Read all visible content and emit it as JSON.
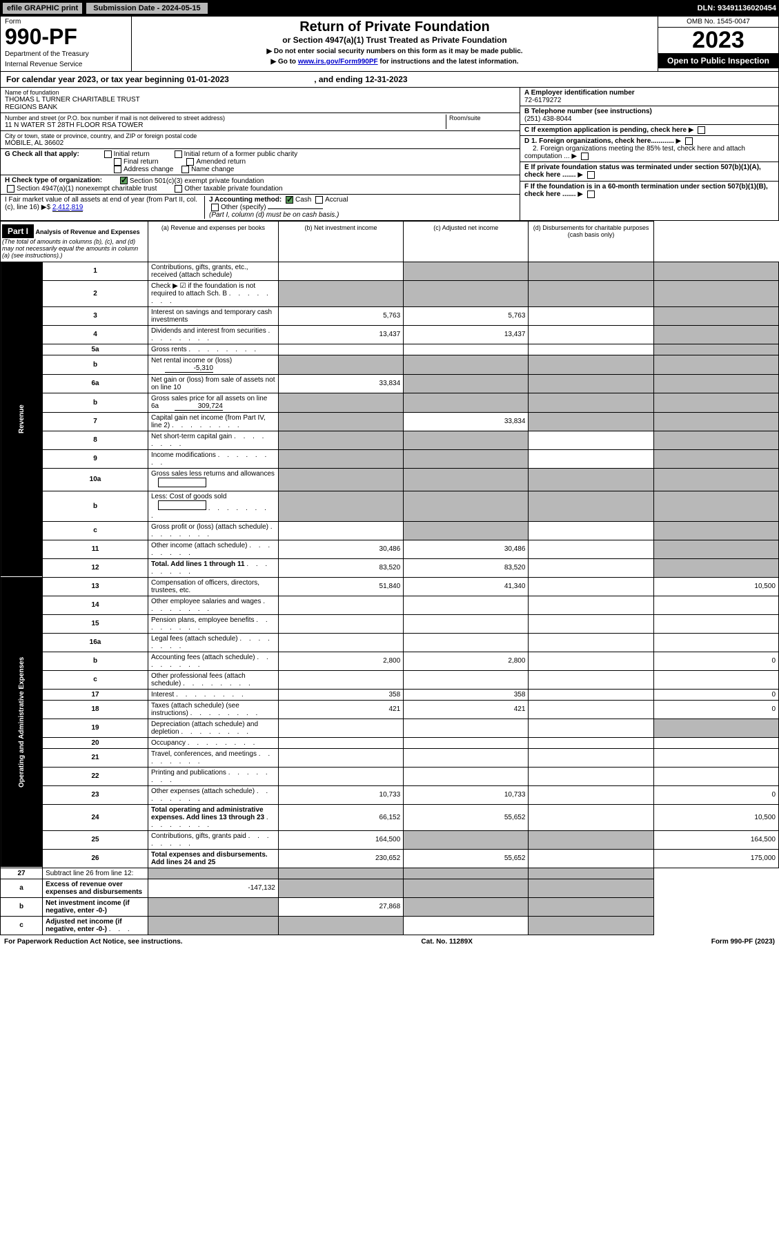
{
  "top": {
    "efile": "efile GRAPHIC print",
    "sub_label": "Submission Date - 2024-05-15",
    "dln": "DLN: 93491136020454"
  },
  "header": {
    "form": "Form",
    "form_num": "990-PF",
    "dept": "Department of the Treasury",
    "irs": "Internal Revenue Service",
    "title": "Return of Private Foundation",
    "subtitle": "or Section 4947(a)(1) Trust Treated as Private Foundation",
    "note1": "▶ Do not enter social security numbers on this form as it may be made public.",
    "note2_pre": "▶ Go to ",
    "note2_link": "www.irs.gov/Form990PF",
    "note2_post": " for instructions and the latest information.",
    "omb": "OMB No. 1545-0047",
    "year": "2023",
    "open": "Open to Public Inspection"
  },
  "cal": {
    "text_pre": "For calendar year 2023, or tax year beginning ",
    "begin": "01-01-2023",
    "mid": " , and ending ",
    "end": "12-31-2023"
  },
  "info": {
    "name_lbl": "Name of foundation",
    "name": "THOMAS L TURNER CHARITABLE TRUST\nREGIONS BANK",
    "addr_lbl": "Number and street (or P.O. box number if mail is not delivered to street address)",
    "addr": "11 N WATER ST 28TH FLOOR RSA TOWER",
    "room_lbl": "Room/suite",
    "city_lbl": "City or town, state or province, country, and ZIP or foreign postal code",
    "city": "MOBILE, AL  36602",
    "ein_lbl": "A Employer identification number",
    "ein": "72-6179272",
    "tel_lbl": "B Telephone number (see instructions)",
    "tel": "(251) 438-8044",
    "c": "C If exemption application is pending, check here",
    "d1": "D 1. Foreign organizations, check here............",
    "d2": "2. Foreign organizations meeting the 85% test, check here and attach computation ...",
    "e": "E If private foundation status was terminated under section 507(b)(1)(A), check here .......",
    "f": "F If the foundation is in a 60-month termination under section 507(b)(1)(B), check here .......",
    "g_lbl": "G Check all that apply:",
    "g_opts": [
      "Initial return",
      "Final return",
      "Address change",
      "Initial return of a former public charity",
      "Amended return",
      "Name change"
    ],
    "h_lbl": "H Check type of organization:",
    "h1": "Section 501(c)(3) exempt private foundation",
    "h2": "Section 4947(a)(1) nonexempt charitable trust",
    "h3": "Other taxable private foundation",
    "i_lbl": "I Fair market value of all assets at end of year (from Part II, col. (c), line 16)",
    "i_val": "2,412,819",
    "j_lbl": "J Accounting method:",
    "j_opts": [
      "Cash",
      "Accrual"
    ],
    "j_other": "Other (specify)",
    "j_note": "(Part I, column (d) must be on cash basis.)"
  },
  "part1": {
    "hdr": "Part I",
    "title": "Analysis of Revenue and Expenses",
    "title_note": " (The total of amounts in columns (b), (c), and (d) may not necessarily equal the amounts in column (a) (see instructions).)",
    "col_a": "(a) Revenue and expenses per books",
    "col_b": "(b) Net investment income",
    "col_c": "(c) Adjusted net income",
    "col_d": "(d) Disbursements for charitable purposes (cash basis only)"
  },
  "sides": {
    "rev": "Revenue",
    "exp": "Operating and Administrative Expenses"
  },
  "lines": [
    {
      "n": "1",
      "d": "Contributions, gifts, grants, etc., received (attach schedule)",
      "a": "",
      "b": null,
      "c": null,
      "dd": null,
      "b_sh": true,
      "c_sh": true,
      "d_sh": true
    },
    {
      "n": "2",
      "d": "Check ▶ ☑ if the foundation is not required to attach Sch. B",
      "dots": true,
      "a": null,
      "b": null,
      "c": null,
      "dd": null,
      "a_sh": true,
      "b_sh": true,
      "c_sh": true,
      "d_sh": true
    },
    {
      "n": "3",
      "d": "Interest on savings and temporary cash investments",
      "a": "5,763",
      "b": "5,763",
      "c": "",
      "dd": null,
      "d_sh": true
    },
    {
      "n": "4",
      "d": "Dividends and interest from securities",
      "dots": true,
      "a": "13,437",
      "b": "13,437",
      "c": "",
      "dd": null,
      "d_sh": true
    },
    {
      "n": "5a",
      "d": "Gross rents",
      "dots": true,
      "a": "",
      "b": "",
      "c": "",
      "dd": null,
      "d_sh": true
    },
    {
      "n": "b",
      "d": "Net rental income or (loss)",
      "inline_val": "-5,310",
      "a": null,
      "b": null,
      "c": null,
      "dd": null,
      "a_sh": true,
      "b_sh": true,
      "c_sh": true,
      "d_sh": true
    },
    {
      "n": "6a",
      "d": "Net gain or (loss) from sale of assets not on line 10",
      "a": "33,834",
      "b": null,
      "c": null,
      "dd": null,
      "b_sh": true,
      "c_sh": true,
      "d_sh": true
    },
    {
      "n": "b",
      "d": "Gross sales price for all assets on line 6a",
      "inline_val": "309,724",
      "a": null,
      "b": null,
      "c": null,
      "dd": null,
      "a_sh": true,
      "b_sh": true,
      "c_sh": true,
      "d_sh": true
    },
    {
      "n": "7",
      "d": "Capital gain net income (from Part IV, line 2)",
      "dots": true,
      "a": null,
      "b": "33,834",
      "c": null,
      "dd": null,
      "a_sh": true,
      "c_sh": true,
      "d_sh": true
    },
    {
      "n": "8",
      "d": "Net short-term capital gain",
      "dots": true,
      "a": null,
      "b": null,
      "c": "",
      "dd": null,
      "a_sh": true,
      "b_sh": true,
      "d_sh": true
    },
    {
      "n": "9",
      "d": "Income modifications",
      "dots": true,
      "a": null,
      "b": null,
      "c": "",
      "dd": null,
      "a_sh": true,
      "b_sh": true,
      "d_sh": true
    },
    {
      "n": "10a",
      "d": "Gross sales less returns and allowances",
      "inline_blank": true,
      "a": null,
      "b": null,
      "c": null,
      "dd": null,
      "a_sh": true,
      "b_sh": true,
      "c_sh": true,
      "d_sh": true
    },
    {
      "n": "b",
      "d": "Less: Cost of goods sold",
      "dots": true,
      "inline_blank": true,
      "a": null,
      "b": null,
      "c": null,
      "dd": null,
      "a_sh": true,
      "b_sh": true,
      "c_sh": true,
      "d_sh": true
    },
    {
      "n": "c",
      "d": "Gross profit or (loss) (attach schedule)",
      "dots": true,
      "a": "",
      "b": null,
      "c": "",
      "dd": null,
      "b_sh": true,
      "d_sh": true
    },
    {
      "n": "11",
      "d": "Other income (attach schedule)",
      "dots": true,
      "a": "30,486",
      "b": "30,486",
      "c": "",
      "dd": null,
      "d_sh": true
    },
    {
      "n": "12",
      "d": "Total. Add lines 1 through 11",
      "dots": true,
      "bold": true,
      "a": "83,520",
      "b": "83,520",
      "c": "",
      "dd": null,
      "d_sh": true
    }
  ],
  "exp_lines": [
    {
      "n": "13",
      "d": "Compensation of officers, directors, trustees, etc.",
      "a": "51,840",
      "b": "41,340",
      "c": "",
      "dd": "10,500"
    },
    {
      "n": "14",
      "d": "Other employee salaries and wages",
      "dots": true,
      "a": "",
      "b": "",
      "c": "",
      "dd": ""
    },
    {
      "n": "15",
      "d": "Pension plans, employee benefits",
      "dots": true,
      "a": "",
      "b": "",
      "c": "",
      "dd": ""
    },
    {
      "n": "16a",
      "d": "Legal fees (attach schedule)",
      "dots": true,
      "a": "",
      "b": "",
      "c": "",
      "dd": ""
    },
    {
      "n": "b",
      "d": "Accounting fees (attach schedule)",
      "dots": true,
      "a": "2,800",
      "b": "2,800",
      "c": "",
      "dd": "0"
    },
    {
      "n": "c",
      "d": "Other professional fees (attach schedule)",
      "dots": true,
      "a": "",
      "b": "",
      "c": "",
      "dd": ""
    },
    {
      "n": "17",
      "d": "Interest",
      "dots": true,
      "a": "358",
      "b": "358",
      "c": "",
      "dd": "0"
    },
    {
      "n": "18",
      "d": "Taxes (attach schedule) (see instructions)",
      "dots": true,
      "a": "421",
      "b": "421",
      "c": "",
      "dd": "0"
    },
    {
      "n": "19",
      "d": "Depreciation (attach schedule) and depletion",
      "dots": true,
      "a": "",
      "b": "",
      "c": "",
      "dd": null,
      "d_sh": true
    },
    {
      "n": "20",
      "d": "Occupancy",
      "dots": true,
      "a": "",
      "b": "",
      "c": "",
      "dd": ""
    },
    {
      "n": "21",
      "d": "Travel, conferences, and meetings",
      "dots": true,
      "a": "",
      "b": "",
      "c": "",
      "dd": ""
    },
    {
      "n": "22",
      "d": "Printing and publications",
      "dots": true,
      "a": "",
      "b": "",
      "c": "",
      "dd": ""
    },
    {
      "n": "23",
      "d": "Other expenses (attach schedule)",
      "dots": true,
      "a": "10,733",
      "b": "10,733",
      "c": "",
      "dd": "0"
    },
    {
      "n": "24",
      "d": "Total operating and administrative expenses. Add lines 13 through 23",
      "dots": true,
      "bold": true,
      "a": "66,152",
      "b": "55,652",
      "c": "",
      "dd": "10,500"
    },
    {
      "n": "25",
      "d": "Contributions, gifts, grants paid",
      "dots": true,
      "a": "164,500",
      "b": null,
      "c": null,
      "dd": "164,500",
      "b_sh": true,
      "c_sh": true
    },
    {
      "n": "26",
      "d": "Total expenses and disbursements. Add lines 24 and 25",
      "bold": true,
      "a": "230,652",
      "b": "55,652",
      "c": "",
      "dd": "175,000"
    }
  ],
  "net_lines": [
    {
      "n": "27",
      "d": "Subtract line 26 from line 12:",
      "a": null,
      "b": null,
      "c": null,
      "dd": null,
      "a_sh": true,
      "b_sh": true,
      "c_sh": true,
      "d_sh": true
    },
    {
      "n": "a",
      "d": "Excess of revenue over expenses and disbursements",
      "bold": true,
      "a": "-147,132",
      "b": null,
      "c": null,
      "dd": null,
      "b_sh": true,
      "c_sh": true,
      "d_sh": true
    },
    {
      "n": "b",
      "d": "Net investment income (if negative, enter -0-)",
      "bold": true,
      "a": null,
      "b": "27,868",
      "c": null,
      "dd": null,
      "a_sh": true,
      "c_sh": true,
      "d_sh": true
    },
    {
      "n": "c",
      "d": "Adjusted net income (if negative, enter -0-)",
      "dots": true,
      "bold": true,
      "a": null,
      "b": null,
      "c": "",
      "dd": null,
      "a_sh": true,
      "b_sh": true,
      "d_sh": true
    }
  ],
  "foot": {
    "left": "For Paperwork Reduction Act Notice, see instructions.",
    "cat": "Cat. No. 11289X",
    "right": "Form 990-PF (2023)"
  },
  "colors": {
    "shade": "#b8b8b8",
    "check": "#5c9e5c",
    "link": "#0000cc"
  }
}
